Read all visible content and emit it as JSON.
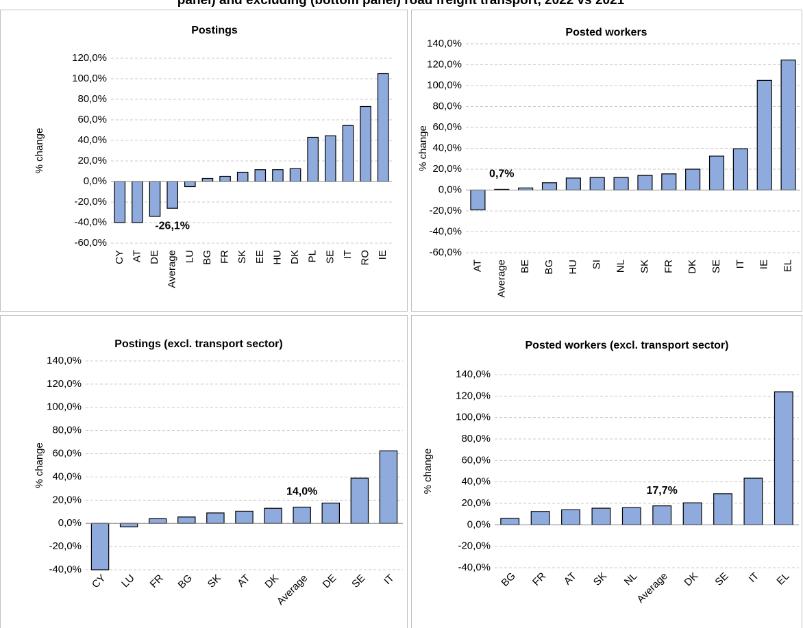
{
  "header": {
    "title": "panel) and excluding (bottom panel) road freight transport, 2022 vs 2021"
  },
  "chart_data": [
    {
      "type": "bar",
      "title": "Postings",
      "y_label": "% change",
      "color": "#8faadc",
      "grid": true,
      "categories": [
        "CY",
        "AT",
        "DE",
        "Average",
        "LU",
        "BG",
        "FR",
        "SK",
        "EE",
        "HU",
        "DK",
        "PL",
        "SE",
        "IT",
        "RO",
        "IE"
      ],
      "values": [
        -40,
        -40,
        -34,
        -26.1,
        -5,
        3,
        5,
        9,
        11.5,
        11.5,
        12.5,
        43,
        44.5,
        54.5,
        73,
        105
      ],
      "value_labels": [
        null,
        null,
        null,
        "-26,1%",
        null,
        null,
        null,
        null,
        null,
        null,
        null,
        null,
        null,
        null,
        null,
        null
      ],
      "ylim": [
        -60,
        120
      ],
      "yticks": [
        {
          "value": -60,
          "label": "-60,0%"
        },
        {
          "value": -40,
          "label": "-40,0%"
        },
        {
          "value": -20,
          "label": "-20,0%"
        },
        {
          "value": 0,
          "label": "0,0%"
        },
        {
          "value": 20,
          "label": "20,0%"
        },
        {
          "value": 40,
          "label": "40,0%"
        },
        {
          "value": 60,
          "label": "60,0%"
        },
        {
          "value": 80,
          "label": "80,0%"
        },
        {
          "value": 100,
          "label": "100,0%"
        },
        {
          "value": 120,
          "label": "120,0%"
        }
      ]
    },
    {
      "type": "bar",
      "title": "Posted workers",
      "y_label": "% change",
      "color": "#8faadc",
      "grid": true,
      "categories": [
        "AT",
        "Average",
        "BE",
        "BG",
        "HU",
        "SI",
        "NL",
        "SK",
        "FR",
        "DK",
        "SE",
        "IT",
        "IE",
        "EL"
      ],
      "values": [
        -19,
        0.7,
        2,
        7,
        11.5,
        12,
        12,
        14,
        15.5,
        20,
        32.5,
        39.5,
        105,
        124.5
      ],
      "value_labels": [
        null,
        "0,7%",
        null,
        null,
        null,
        null,
        null,
        null,
        null,
        null,
        null,
        null,
        null,
        null
      ],
      "ylim": [
        -60,
        140
      ],
      "yticks": [
        {
          "value": -60,
          "label": "-60,0%"
        },
        {
          "value": -40,
          "label": "-40,0%"
        },
        {
          "value": -20,
          "label": "-20,0%"
        },
        {
          "value": 0,
          "label": "0,0%"
        },
        {
          "value": 20,
          "label": "20,0%"
        },
        {
          "value": 40,
          "label": "40,0%"
        },
        {
          "value": 60,
          "label": "60,0%"
        },
        {
          "value": 80,
          "label": "80,0%"
        },
        {
          "value": 100,
          "label": "100,0%"
        },
        {
          "value": 120,
          "label": "120,0%"
        },
        {
          "value": 140,
          "label": "140,0%"
        }
      ]
    },
    {
      "type": "bar",
      "title": "Postings (excl. transport sector)",
      "y_label": "% change",
      "color": "#8faadc",
      "grid": true,
      "categories": [
        "CY",
        "LU",
        "FR",
        "BG",
        "SK",
        "AT",
        "DK",
        "Average",
        "DE",
        "SE",
        "IT"
      ],
      "values": [
        -40,
        -3,
        4,
        5.5,
        9,
        10.5,
        13,
        14.0,
        17.5,
        39,
        62.5
      ],
      "value_labels": [
        null,
        null,
        null,
        null,
        null,
        null,
        null,
        "14,0%",
        null,
        null,
        null
      ],
      "ylim": [
        -40,
        140
      ],
      "yticks": [
        {
          "value": -40,
          "label": "-40,0%"
        },
        {
          "value": -20,
          "label": "-20,0%"
        },
        {
          "value": 0,
          "label": "0,0%"
        },
        {
          "value": 20,
          "label": "20,0%"
        },
        {
          "value": 40,
          "label": "40,0%"
        },
        {
          "value": 60,
          "label": "60,0%"
        },
        {
          "value": 80,
          "label": "80,0%"
        },
        {
          "value": 100,
          "label": "100,0%"
        },
        {
          "value": 120,
          "label": "120,0%"
        },
        {
          "value": 140,
          "label": "140,0%"
        }
      ]
    },
    {
      "type": "bar",
      "title": "Posted workers (excl. transport sector)",
      "y_label": "% change",
      "color": "#8faadc",
      "grid": true,
      "categories": [
        "BG",
        "FR",
        "AT",
        "SK",
        "NL",
        "Average",
        "DK",
        "SE",
        "IT",
        "EL"
      ],
      "values": [
        6,
        12.5,
        14,
        15.5,
        16,
        17.7,
        20.5,
        29,
        43.5,
        124
      ],
      "value_labels": [
        null,
        null,
        null,
        null,
        null,
        "17,7%",
        null,
        null,
        null,
        null
      ],
      "ylim": [
        -40,
        140
      ],
      "yticks": [
        {
          "value": -40,
          "label": "-40,0%"
        },
        {
          "value": -20,
          "label": "-20,0%"
        },
        {
          "value": 0,
          "label": "0,0%"
        },
        {
          "value": 20,
          "label": "20,0%"
        },
        {
          "value": 40,
          "label": "40,0%"
        },
        {
          "value": 60,
          "label": "60,0%"
        },
        {
          "value": 80,
          "label": "80,0%"
        },
        {
          "value": 100,
          "label": "100,0%"
        },
        {
          "value": 120,
          "label": "120,0%"
        },
        {
          "value": 140,
          "label": "140,0%"
        }
      ]
    }
  ]
}
